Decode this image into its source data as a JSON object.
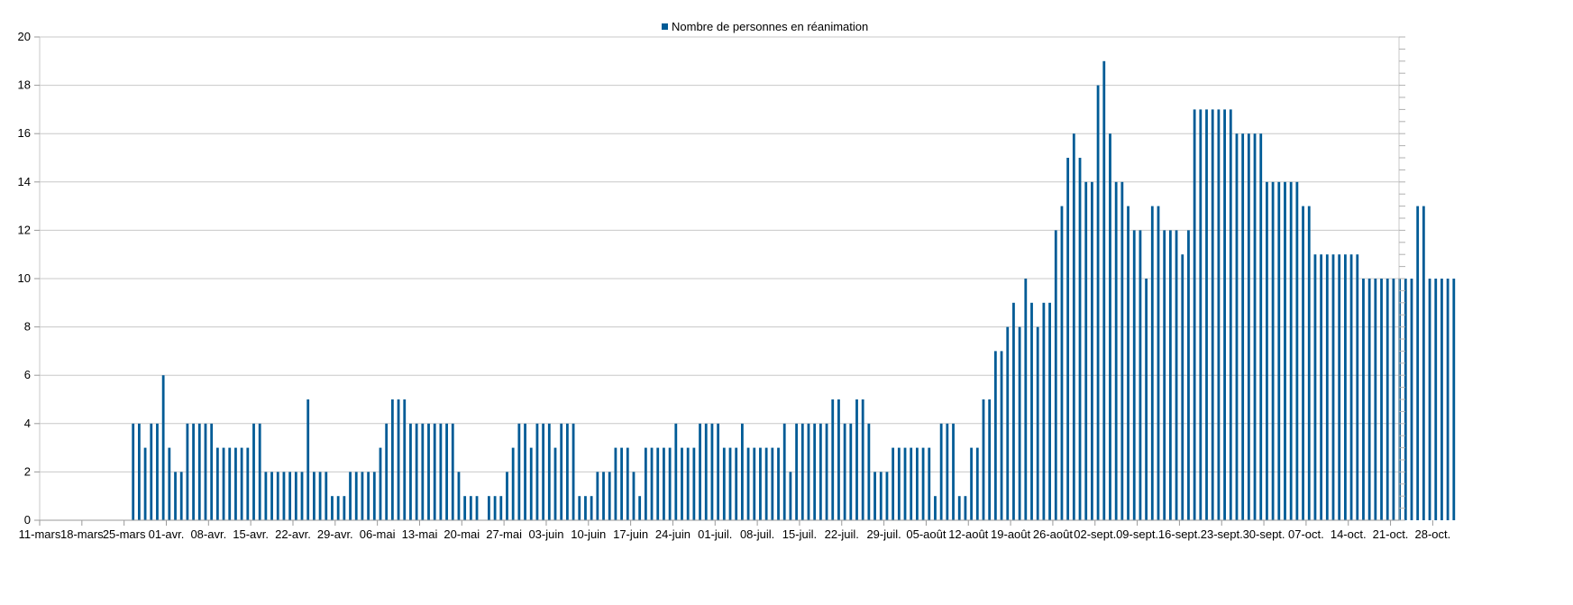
{
  "chart_data": {
    "type": "bar",
    "title": "",
    "xlabel": "",
    "ylabel": "",
    "ylim": [
      0,
      20
    ],
    "yticks": [
      0,
      2,
      4,
      6,
      8,
      10,
      12,
      14,
      16,
      18,
      20
    ],
    "grid": true,
    "legend_position": "top-center",
    "bar_color": "#005b96",
    "grid_color": "#c8c8c8",
    "series": [
      {
        "name": "Nombre de personnes en réanimation"
      }
    ],
    "start_date": "11-mars",
    "xtick_labels": [
      "11-mars",
      "18-mars",
      "25-mars",
      "01-avr.",
      "08-avr.",
      "15-avr.",
      "22-avr.",
      "29-avr.",
      "06-mai",
      "13-mai",
      "20-mai",
      "27-mai",
      "03-juin",
      "10-juin",
      "17-juin",
      "24-juin",
      "01-juil.",
      "08-juil.",
      "15-juil.",
      "22-juil.",
      "29-juil.",
      "05-août",
      "12-août",
      "19-août",
      "26-août",
      "02-sept.",
      "09-sept.",
      "16-sept.",
      "23-sept.",
      "30-sept.",
      "07-oct.",
      "14-oct.",
      "21-oct.",
      "28-oct."
    ],
    "values": [
      0,
      0,
      0,
      0,
      0,
      0,
      0,
      0,
      0,
      0,
      0,
      0,
      0,
      0,
      0,
      4,
      4,
      3,
      4,
      4,
      6,
      3,
      2,
      2,
      4,
      4,
      4,
      4,
      4,
      3,
      3,
      3,
      3,
      3,
      3,
      4,
      4,
      2,
      2,
      2,
      2,
      2,
      2,
      2,
      5,
      2,
      2,
      2,
      1,
      1,
      1,
      2,
      2,
      2,
      2,
      2,
      3,
      4,
      5,
      5,
      5,
      4,
      4,
      4,
      4,
      4,
      4,
      4,
      4,
      2,
      1,
      1,
      1,
      0,
      1,
      1,
      1,
      2,
      3,
      4,
      4,
      3,
      4,
      4,
      4,
      3,
      4,
      4,
      4,
      1,
      1,
      1,
      2,
      2,
      2,
      3,
      3,
      3,
      2,
      1,
      3,
      3,
      3,
      3,
      3,
      4,
      3,
      3,
      3,
      4,
      4,
      4,
      4,
      3,
      3,
      3,
      4,
      3,
      3,
      3,
      3,
      3,
      3,
      4,
      2,
      4,
      4,
      4,
      4,
      4,
      4,
      5,
      5,
      4,
      4,
      5,
      5,
      4,
      2,
      2,
      2,
      3,
      3,
      3,
      3,
      3,
      3,
      3,
      1,
      4,
      4,
      4,
      1,
      1,
      3,
      3,
      5,
      5,
      7,
      7,
      8,
      9,
      8,
      10,
      9,
      8,
      9,
      9,
      12,
      13,
      15,
      16,
      15,
      14,
      14,
      18,
      19,
      16,
      14,
      14,
      13,
      12,
      12,
      10,
      13,
      13,
      12,
      12,
      12,
      11,
      12,
      17,
      17,
      17,
      17,
      17,
      17,
      17,
      16,
      16,
      16,
      16,
      16,
      14,
      14,
      14,
      14,
      14,
      14,
      13,
      13,
      11,
      11,
      11,
      11,
      11,
      11,
      11,
      11,
      10,
      10,
      10,
      10,
      10,
      10,
      10,
      10,
      10,
      13,
      13,
      10,
      10,
      10,
      10,
      10
    ]
  }
}
